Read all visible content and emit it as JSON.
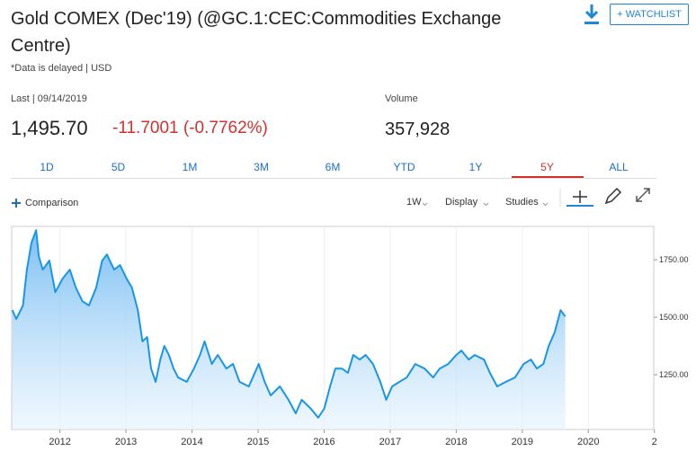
{
  "header": {
    "title": "Gold COMEX (Dec'19) (@GC.1:CEC:Commodities Exchange Centre)",
    "note": "*Data is delayed | USD",
    "watchlist": "+ WATCHLIST"
  },
  "quote": {
    "last_label": "Last | 09/14/2019",
    "last_value": "1,495.70",
    "change": "-11.7001 (-0.7762%)",
    "volume_label": "Volume",
    "volume": "357,928"
  },
  "tabs": [
    {
      "label": "1D"
    },
    {
      "label": "5D"
    },
    {
      "label": "1M"
    },
    {
      "label": "3M"
    },
    {
      "label": "6M"
    },
    {
      "label": "YTD"
    },
    {
      "label": "1Y"
    },
    {
      "label": "5Y",
      "selected": true
    },
    {
      "label": "ALL"
    }
  ],
  "toolbar": {
    "comparison": "Comparison",
    "interval": "1W",
    "display": "Display",
    "studies": "Studies"
  },
  "chart_data": {
    "type": "area",
    "color": "#1a96e6",
    "grid": true,
    "x": [
      2011.28,
      2011.34,
      2011.44,
      2011.5,
      2011.57,
      2011.64,
      2011.68,
      2011.74,
      2011.84,
      2011.93,
      2012.04,
      2012.15,
      2012.24,
      2012.34,
      2012.44,
      2012.55,
      2012.64,
      2012.71,
      2012.82,
      2012.91,
      2013.01,
      2013.09,
      2013.18,
      2013.25,
      2013.32,
      2013.38,
      2013.45,
      2013.52,
      2013.58,
      2013.65,
      2013.72,
      2013.79,
      2013.92,
      2014.03,
      2014.12,
      2014.19,
      2014.3,
      2014.39,
      2014.52,
      2014.62,
      2014.72,
      2014.86,
      2015.01,
      2015.1,
      2015.19,
      2015.33,
      2015.46,
      2015.57,
      2015.66,
      2015.8,
      2015.91,
      2016.0,
      2016.09,
      2016.17,
      2016.27,
      2016.36,
      2016.44,
      2016.54,
      2016.63,
      2016.74,
      2016.85,
      2016.94,
      2017.03,
      2017.14,
      2017.25,
      2017.38,
      2017.52,
      2017.65,
      2017.75,
      2017.88,
      2018.0,
      2018.08,
      2018.19,
      2018.28,
      2018.42,
      2018.51,
      2018.62,
      2018.75,
      2018.89,
      2019.02,
      2019.13,
      2019.22,
      2019.32,
      2019.4,
      2019.49,
      2019.58,
      2019.65
    ],
    "values": [
      1531,
      1492,
      1551,
      1707,
      1824,
      1879,
      1766,
      1707,
      1746,
      1609,
      1668,
      1707,
      1629,
      1570,
      1551,
      1629,
      1746,
      1773,
      1707,
      1727,
      1668,
      1629,
      1531,
      1395,
      1414,
      1277,
      1219,
      1316,
      1375,
      1336,
      1277,
      1238,
      1219,
      1277,
      1336,
      1395,
      1297,
      1336,
      1277,
      1297,
      1219,
      1199,
      1297,
      1219,
      1160,
      1199,
      1141,
      1082,
      1141,
      1102,
      1063,
      1102,
      1199,
      1277,
      1277,
      1258,
      1336,
      1316,
      1336,
      1297,
      1219,
      1141,
      1199,
      1219,
      1238,
      1297,
      1277,
      1238,
      1277,
      1297,
      1336,
      1355,
      1316,
      1336,
      1316,
      1258,
      1199,
      1219,
      1238,
      1297,
      1316,
      1277,
      1297,
      1375,
      1434,
      1531,
      1504
    ],
    "xlim": [
      2011.27,
      2020.99
    ],
    "ylim": [
      1012,
      1895
    ],
    "xticks": [
      2012,
      2013,
      2014,
      2015,
      2016,
      2017,
      2018,
      2019,
      2020,
      {
        "value": 2021,
        "label": "2"
      }
    ],
    "yticks": [
      {
        "value": 1250,
        "label": "1250.00"
      },
      {
        "value": 1500,
        "label": "1500.00"
      },
      {
        "value": 1750,
        "label": "1750.00"
      }
    ]
  }
}
